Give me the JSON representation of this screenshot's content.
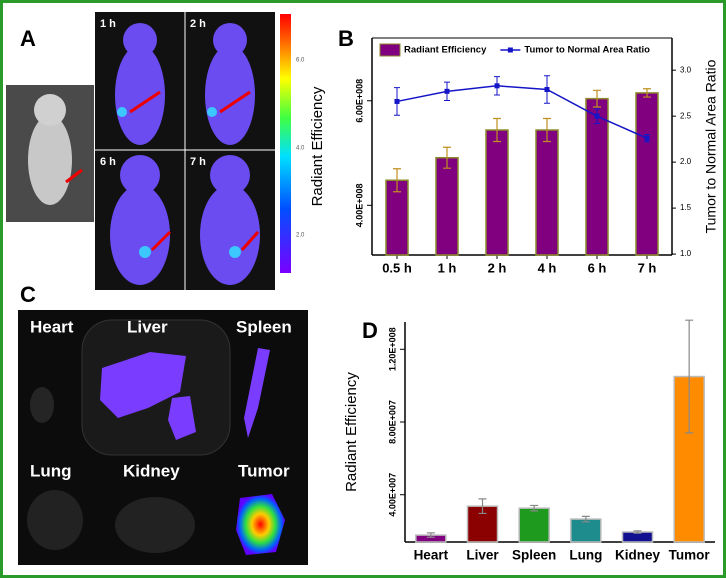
{
  "labels": {
    "panel_a": "A",
    "panel_b": "B",
    "panel_c": "C",
    "panel_d": "D",
    "times": [
      "1 h",
      "2 h",
      "6 h",
      "7 h"
    ],
    "colorbar_ticks": [
      "6.0",
      "4.0",
      "2.0"
    ],
    "organs": [
      "Heart",
      "Liver",
      "Spleen",
      "Lung",
      "Kidney",
      "Tumor"
    ]
  },
  "chart_data": [
    {
      "type": "combo",
      "categories": [
        "0.5 h",
        "1 h",
        "2 h",
        "4 h",
        "6 h",
        "7 h"
      ],
      "ylabel": "Radiant Efficiency",
      "y2label": "Tumor to Normal Area Ratio",
      "ylim": [
        305000000,
        720000000
      ],
      "yticks": [
        {
          "value": 400000000,
          "label": "4.00E+008"
        },
        {
          "value": 600000000,
          "label": "6.00E+008"
        }
      ],
      "y2lim": [
        0.99,
        3.35
      ],
      "y2ticks": [
        {
          "value": 1,
          "label": "1.0"
        },
        1.5,
        {
          "value": 2,
          "label": "2.0"
        },
        2.5,
        {
          "value": 3,
          "label": "3.0"
        }
      ],
      "legend": "top",
      "series": [
        {
          "name": "Radiant Efficiency",
          "type": "bar",
          "color": "#800080",
          "values": [
            448000000,
            491000000,
            544000000,
            544000000,
            604000000,
            615000000
          ],
          "errors": [
            22000000,
            20000000,
            22000000,
            22000000,
            16000000,
            8000000
          ]
        },
        {
          "name": "Tumor to Normal Area Ratio",
          "type": "line",
          "axis": "y2",
          "color": "#1515c8",
          "values": [
            2.66,
            2.77,
            2.83,
            2.79,
            2.5,
            2.26
          ],
          "errors": [
            0.15,
            0.1,
            0.1,
            0.15,
            0.08,
            0.04
          ]
        }
      ]
    },
    {
      "type": "bar",
      "categories": [
        "Heart",
        "Liver",
        "Spleen",
        "Lung",
        "Kidney",
        "Tumor"
      ],
      "ylabel": "Radiant Efficiency",
      "ylim": [
        14000000,
        135000000
      ],
      "yticks": [
        {
          "value": 40000000,
          "label": "4.00E+007"
        },
        {
          "value": 80000000,
          "label": "8.00E+007"
        },
        {
          "value": 120000000,
          "label": "1.20E+008"
        }
      ],
      "values": [
        17800000,
        33700000,
        32600000,
        26600000,
        19500000,
        105000000
      ],
      "errors": [
        1200000,
        4000000,
        1500000,
        1500000,
        600000,
        31000000
      ],
      "colors": [
        "#800080",
        "#8b0000",
        "#1e9a1e",
        "#1e8c8c",
        "#101090",
        "#ff8c00"
      ]
    }
  ]
}
